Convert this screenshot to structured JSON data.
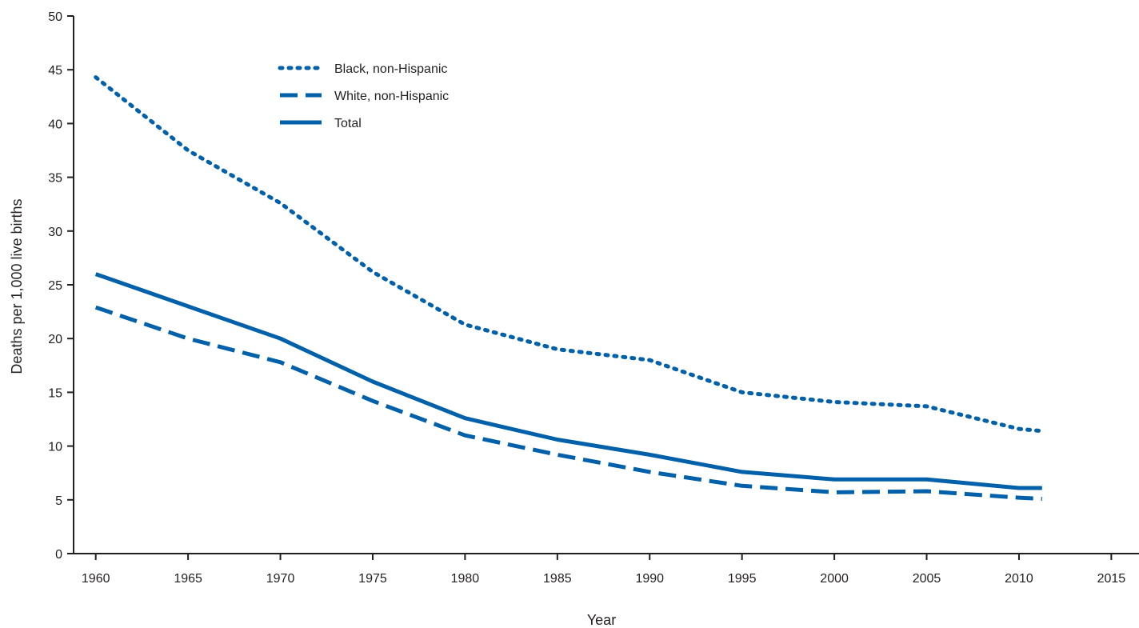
{
  "chart_data": {
    "type": "line",
    "xlabel": "Year",
    "ylabel": "Deaths per 1,000 live births",
    "xlim": [
      1958.8,
      2016.5
    ],
    "ylim": [
      0,
      50
    ],
    "x_ticks": [
      1960,
      1965,
      1970,
      1975,
      1980,
      1985,
      1990,
      1995,
      2000,
      2005,
      2010,
      2015
    ],
    "y_ticks": [
      0,
      5,
      10,
      15,
      20,
      25,
      30,
      35,
      40,
      45,
      50
    ],
    "grid": false,
    "legend_position": "top-left",
    "x": [
      1960,
      1965,
      1970,
      1975,
      1980,
      1985,
      1990,
      1995,
      2000,
      2005,
      2010,
      2011
    ],
    "series": [
      {
        "name": "Black, non-Hispanic",
        "style": "dotted",
        "color": "#0060a9",
        "values": [
          44.3,
          37.5,
          32.6,
          26.2,
          21.3,
          19.0,
          18.0,
          15.0,
          14.1,
          13.7,
          11.6,
          11.4
        ]
      },
      {
        "name": "White, non-Hispanic",
        "style": "dashed",
        "color": "#0060a9",
        "values": [
          22.9,
          20.0,
          17.8,
          14.2,
          11.0,
          9.2,
          7.6,
          6.3,
          5.7,
          5.8,
          5.2,
          5.1
        ]
      },
      {
        "name": "Total",
        "style": "solid",
        "color": "#0060a9",
        "values": [
          26.0,
          23.0,
          20.0,
          16.0,
          12.6,
          10.6,
          9.2,
          7.6,
          6.9,
          6.9,
          6.1,
          6.1
        ]
      }
    ]
  }
}
